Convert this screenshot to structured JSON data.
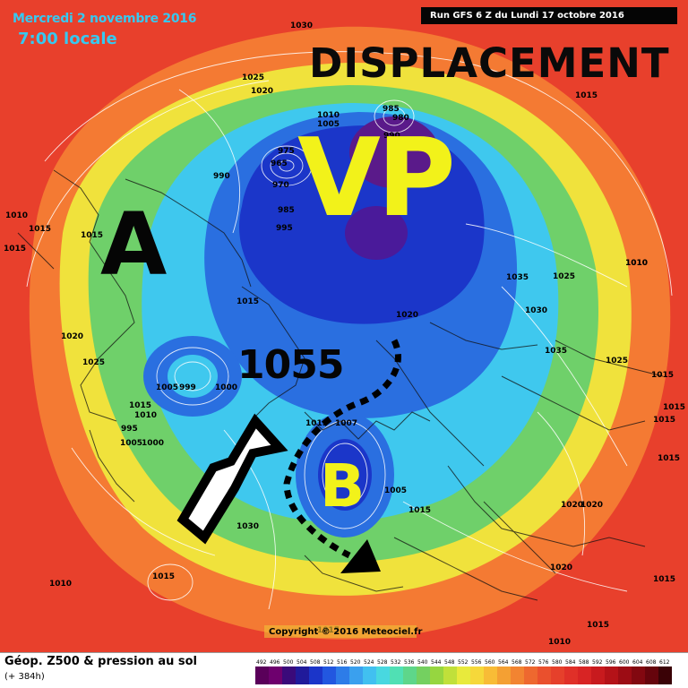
{
  "header": {
    "date": "Mercredi 2 novembre 2016",
    "time": "7:00 locale",
    "run": "Run GFS 6 Z du Lundi 17 octobre 2016"
  },
  "overlay": {
    "title": "DISPLACEMENT",
    "vp": "VP",
    "a": "A",
    "b": "B",
    "high_value": "1055"
  },
  "pressure_labels": [
    "1030",
    "1025",
    "1020",
    "1010",
    "1005",
    "985",
    "980",
    "990",
    "995",
    "975",
    "970",
    "965",
    "985",
    "995",
    "990",
    "1010",
    "1015",
    "1015",
    "1015",
    "1015",
    "1020",
    "1025",
    "1035",
    "1025",
    "1010",
    "1020",
    "1030",
    "1015",
    "1035",
    "1025",
    "1015",
    "1015",
    "1015",
    "1055",
    "1005",
    "999",
    "1000",
    "1015",
    "1010",
    "995",
    "1005",
    "1000",
    "1015",
    "1030",
    "1015",
    "1007",
    "1005",
    "1015",
    "1020",
    "1020",
    "1015",
    "1010",
    "1015",
    "1015",
    "1010",
    "1015",
    "1020",
    "1015",
    "1010"
  ],
  "copyright": "Copyright © 2016 Meteociel.fr",
  "legend": {
    "title": "Géop. Z500 & pression au sol",
    "subtitle": "(+ 384h)",
    "values": [
      "492",
      "496",
      "500",
      "504",
      "508",
      "512",
      "516",
      "520",
      "524",
      "528",
      "532",
      "536",
      "540",
      "544",
      "548",
      "552",
      "556",
      "560",
      "564",
      "568",
      "572",
      "576",
      "580",
      "584",
      "588",
      "592",
      "596",
      "600",
      "604",
      "608",
      "612"
    ],
    "colors": [
      "#5a005a",
      "#6e006e",
      "#3a0a7a",
      "#201a9a",
      "#1b35c9",
      "#2257e0",
      "#2d7ce8",
      "#3aa0ee",
      "#41c0f0",
      "#48d8e0",
      "#50e0b4",
      "#5ed68a",
      "#74d060",
      "#96d640",
      "#c0e03a",
      "#e8ea3c",
      "#f6d83a",
      "#f8bc36",
      "#f4a033",
      "#f28431",
      "#ee682f",
      "#ea502d",
      "#e6402b",
      "#e03028",
      "#d82424",
      "#c81a1e",
      "#b41218",
      "#9c0c14",
      "#820810",
      "#66040c",
      "#3a0206"
    ]
  },
  "colors": {
    "outer": "#e8402c",
    "orange": "#f47a33",
    "yellow": "#f0e23c",
    "green": "#6fd06a",
    "cyan": "#3fc8ee",
    "blue": "#2a6fe0",
    "deep": "#1b36c9",
    "purple": "#5a1a8a",
    "overlay_yellow": "#f2f21a",
    "header_cyan": "#37c8f0"
  }
}
